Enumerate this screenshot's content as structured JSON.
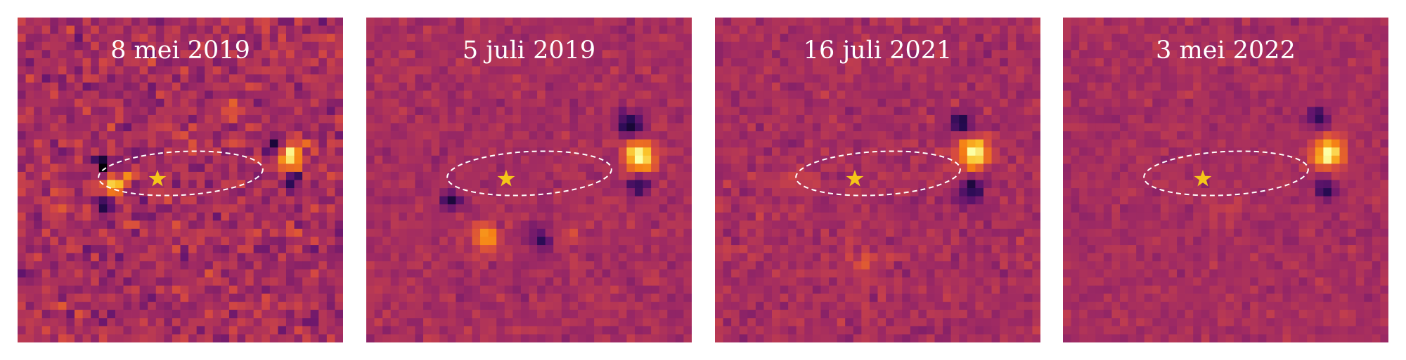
{
  "panels": [
    {
      "date_label": "8 mei 2019"
    },
    {
      "date_label": "5 juli 2019"
    },
    {
      "date_label": "16 juli 2021"
    },
    {
      "date_label": "3 mei 2022"
    }
  ],
  "colors": {
    "background": "#6a2566",
    "orbit": "#ffffff",
    "star": "#f5c518",
    "colormap": "inferno"
  },
  "icons": {
    "star_marker": "star-icon",
    "orbit_path": "dashed-ellipse"
  }
}
